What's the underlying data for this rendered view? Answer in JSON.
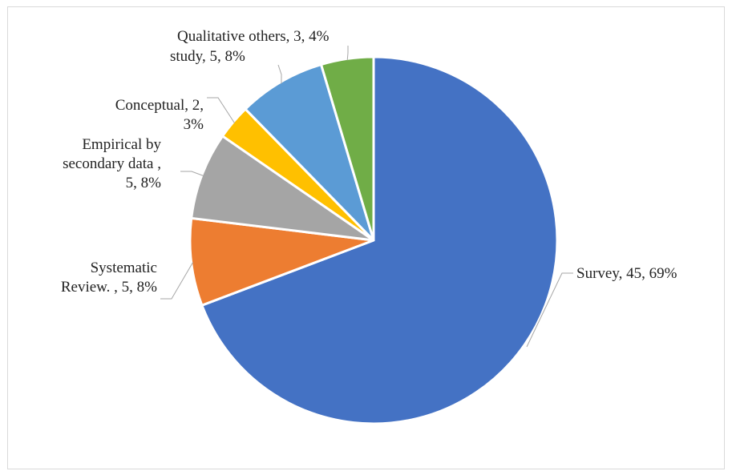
{
  "chart_data": {
    "type": "pie",
    "title": "",
    "slices": [
      {
        "label": "Survey",
        "value": 45,
        "percent": "69%",
        "color": "#4472c4",
        "label_lines": [
          "Survey, 45, 69%"
        ]
      },
      {
        "label": "Systematic Review. ",
        "value": 5,
        "percent": "8%",
        "color": "#ed7d31",
        "label_lines": [
          "Systematic",
          "Review. , 5, 8%"
        ]
      },
      {
        "label": "Empirical by secondary data ",
        "value": 5,
        "percent": "8%",
        "color": "#a5a5a5",
        "label_lines": [
          "Empirical by",
          "secondary data  ,",
          "5, 8%"
        ]
      },
      {
        "label": "Conceptual",
        "value": 2,
        "percent": "3%",
        "color": "#ffc000",
        "label_lines": [
          "Conceptual, 2,",
          "3%"
        ]
      },
      {
        "label": "study",
        "value": 5,
        "percent": "8%",
        "color": "#5b9bd5",
        "label_lines": [
          "study, 5, 8%"
        ]
      },
      {
        "label": "Qualitative others",
        "value": 3,
        "percent": "4%",
        "color": "#70ad47",
        "label_lines": [
          "Qualitative others, 3, 4%"
        ]
      }
    ],
    "start": "12 o'clock",
    "direction": "clockwise",
    "legend": "none",
    "data_labels": "outside with leader lines"
  }
}
